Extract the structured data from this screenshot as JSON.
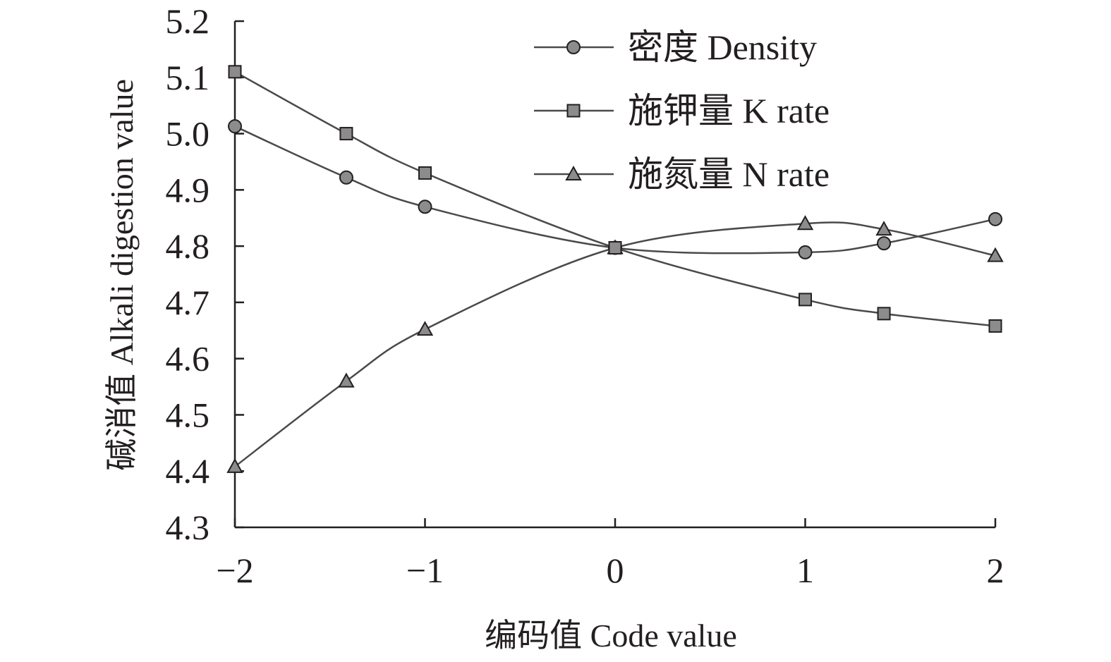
{
  "chart_data": {
    "type": "line",
    "title": "",
    "xlabel": "编码值 Code value",
    "ylabel": "碱消值 Alkali digestion value",
    "xlim": [
      -2,
      2
    ],
    "ylim": [
      4.3,
      5.2
    ],
    "xticks": [
      -2,
      -1,
      0,
      1,
      2
    ],
    "xtick_labels": [
      "−2",
      "−1",
      "0",
      "1",
      "2"
    ],
    "yticks": [
      4.3,
      4.4,
      4.5,
      4.6,
      4.7,
      4.8,
      4.9,
      5.0,
      5.1,
      5.2
    ],
    "ytick_labels": [
      "4.3",
      "4.4",
      "4.5",
      "4.6",
      "4.7",
      "4.8",
      "4.9",
      "5.0",
      "5.1",
      "5.2"
    ],
    "grid": false,
    "legend_position": "top-right",
    "x": [
      -2,
      -1.414,
      -1,
      0,
      1,
      1.414,
      2
    ],
    "series": [
      {
        "name": "密度 Density",
        "marker": "circle",
        "values": [
          5.013,
          4.922,
          4.87,
          4.797,
          4.789,
          4.805,
          4.848
        ]
      },
      {
        "name": "施钾量  K rate",
        "marker": "square",
        "values": [
          5.11,
          5.0,
          4.93,
          4.797,
          4.705,
          4.68,
          4.658
        ]
      },
      {
        "name": "施氮量  N rate",
        "marker": "triangle",
        "values": [
          4.408,
          4.56,
          4.652,
          4.797,
          4.84,
          4.83,
          4.783
        ]
      }
    ],
    "colors": {
      "line": "#4a4a4a",
      "marker_fill": "#8c8c8c",
      "marker_stroke": "#231f20",
      "axis": "#231f20"
    }
  }
}
